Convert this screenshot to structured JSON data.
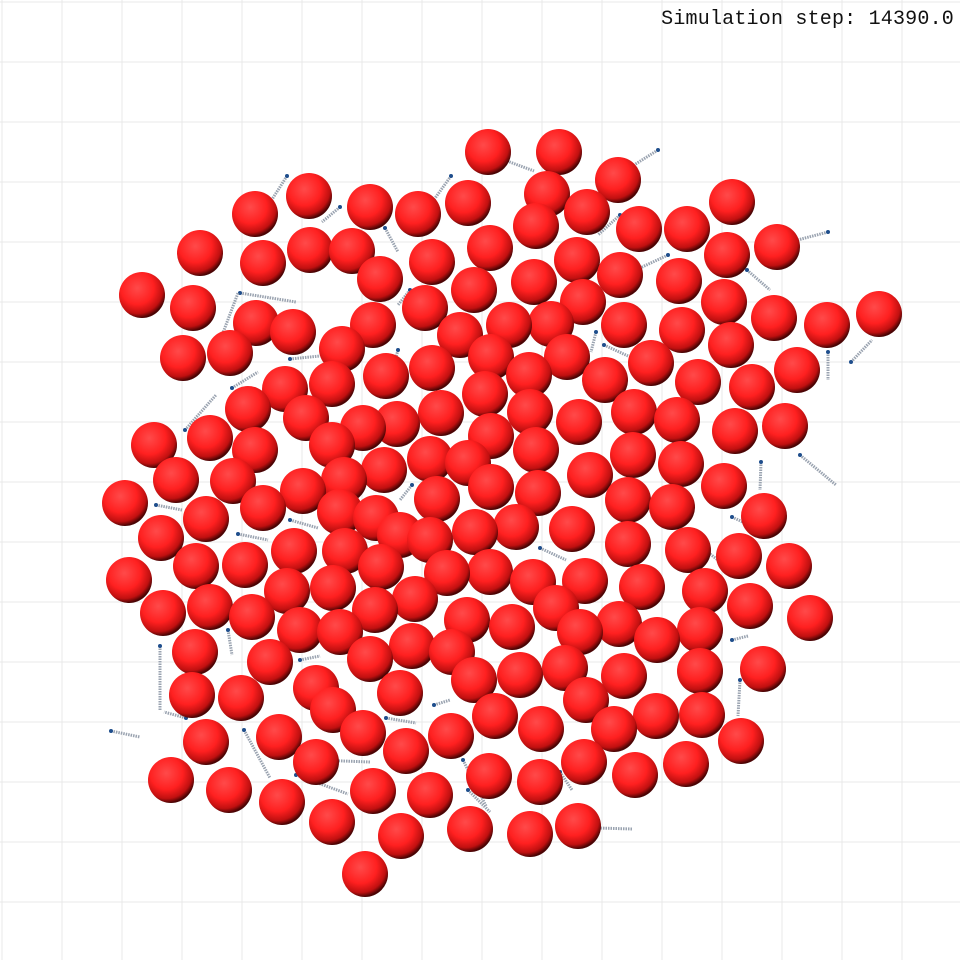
{
  "status": {
    "prefix": "Simulation step: ",
    "value": "14390.0",
    "text": "Simulation step: 14390.0"
  },
  "scene": {
    "particle_name": "red-sphere",
    "particle_color": "#ff2222",
    "tether_color": "#9aa3b0",
    "anchor_color": "#1f4e8c",
    "grid_color": "#e8e8e8",
    "background_color": "#ffffff"
  }
}
